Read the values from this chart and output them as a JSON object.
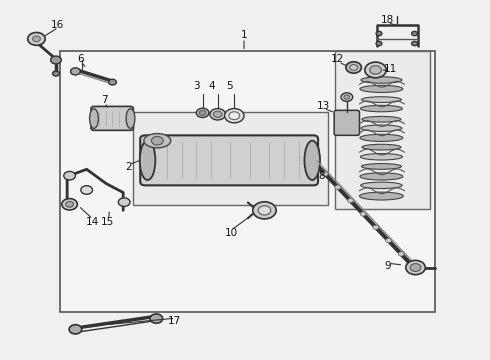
{
  "background_color": "#f0f0f0",
  "fig_width": 4.9,
  "fig_height": 3.6,
  "dpi": 100
}
